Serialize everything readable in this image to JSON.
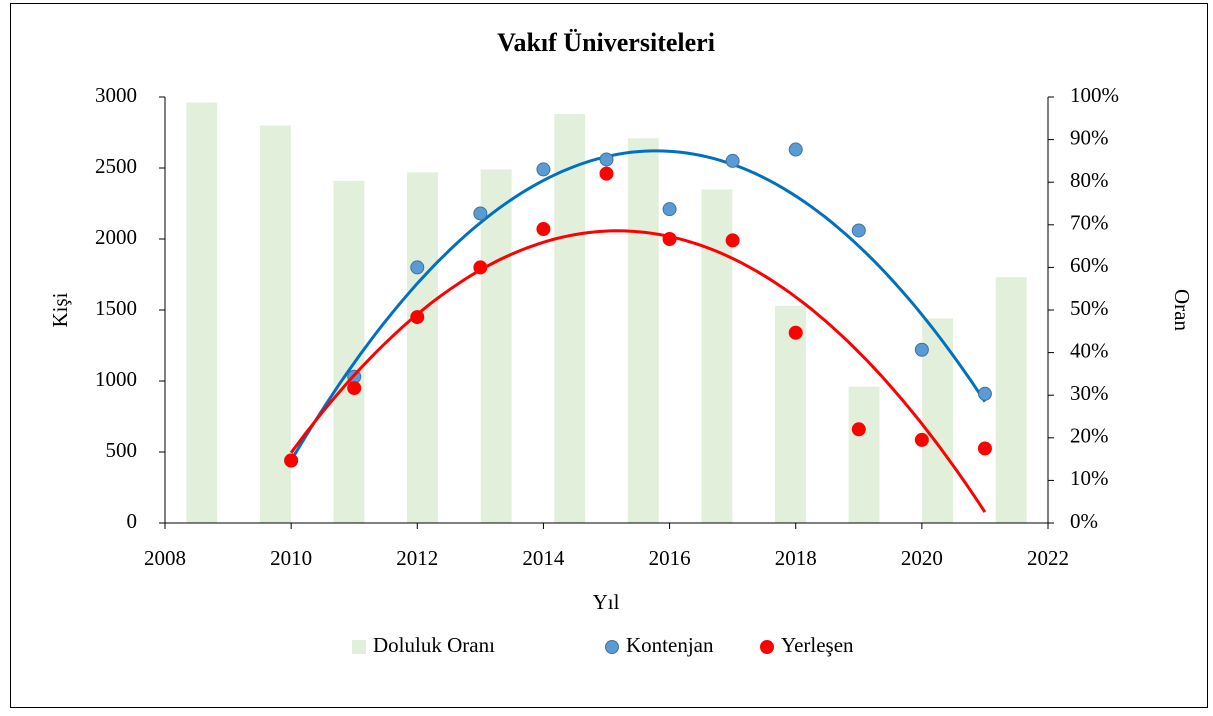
{
  "chart_data": {
    "type": "combo",
    "title": "Vakıf Üniversiteleri",
    "x_label": "Yıl",
    "y_label": "Kişi",
    "y2_label": "Oran",
    "x": [
      2010,
      2011,
      2012,
      2013,
      2014,
      2015,
      2016,
      2017,
      2018,
      2019,
      2020,
      2021
    ],
    "xlim": [
      2008,
      2022
    ],
    "xticks": [
      2008,
      2010,
      2012,
      2014,
      2016,
      2018,
      2020,
      2022
    ],
    "ylim": [
      0,
      3000
    ],
    "yticks": [
      0,
      500,
      1000,
      1500,
      2000,
      2500,
      3000
    ],
    "y2lim": [
      0,
      100
    ],
    "y2ticks": [
      {
        "value": 0,
        "label": "0%"
      },
      {
        "value": 10,
        "label": "10%"
      },
      {
        "value": 20,
        "label": "20%"
      },
      {
        "value": 30,
        "label": "30%"
      },
      {
        "value": 40,
        "label": "40%"
      },
      {
        "value": 50,
        "label": "50%"
      },
      {
        "value": 60,
        "label": "60%"
      },
      {
        "value": 70,
        "label": "70%"
      },
      {
        "value": 80,
        "label": "80%"
      },
      {
        "value": 90,
        "label": "90%"
      },
      {
        "value": 100,
        "label": "100%"
      }
    ],
    "trendline_order": 2,
    "legend": "bottom",
    "series": [
      {
        "name": "Doluluk Oranı",
        "type": "bar",
        "axis": "y2",
        "color": "#e2efda",
        "values": [
          98.7,
          93.3,
          80.3,
          82.3,
          83,
          96,
          90.3,
          78.3,
          51,
          32,
          48,
          57.7
        ]
      },
      {
        "name": "Kontenjan",
        "type": "scatter",
        "color": "#5b9bd5",
        "line_color": "#0070c0",
        "values": [
          440,
          1030,
          1800,
          2180,
          2490,
          2560,
          2210,
          2550,
          2630,
          2060,
          1220,
          910
        ]
      },
      {
        "name": "Yerleşen",
        "type": "scatter",
        "color": "#ff0000",
        "line_color": "#ff0000",
        "values": [
          440,
          950,
          1450,
          1800,
          2070,
          2460,
          2000,
          1990,
          1340,
          660,
          585,
          525
        ]
      }
    ]
  }
}
